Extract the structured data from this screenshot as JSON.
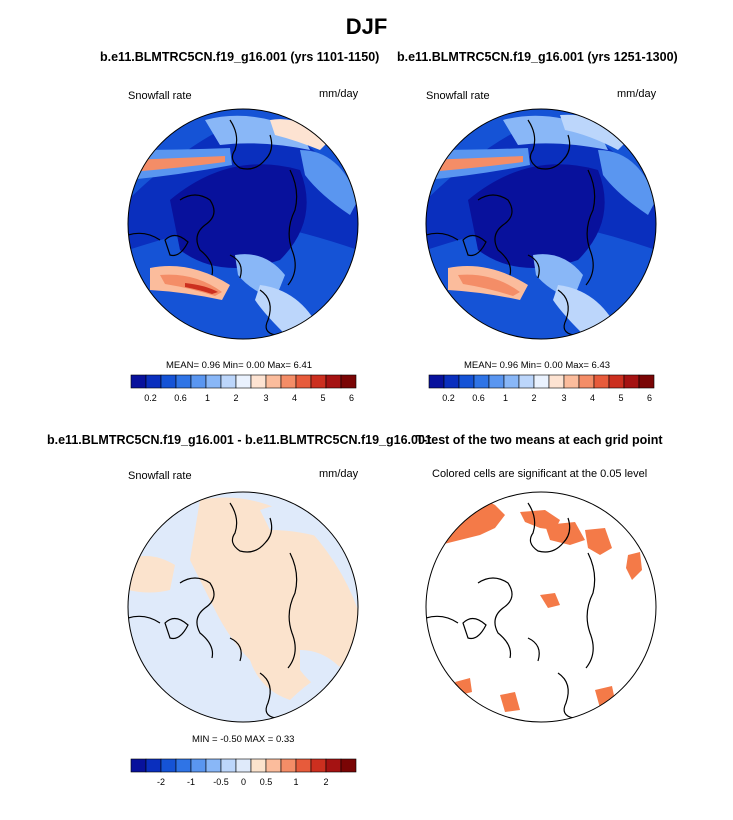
{
  "figure": {
    "title": "DJF",
    "top_left_title": "b.e11.BLMTRC5CN.f19_g16.001 (yrs 1101-1150)",
    "top_right_title": "b.e11.BLMTRC5CN.f19_g16.001 (yrs 1251-1300)",
    "bottom_left_title": "b.e11.BLMTRC5CN.f19_g16.001 - b.e11.BLMTRC5CN.f19_g16.001",
    "bottom_right_title": "T-test of the two means at each grid point"
  },
  "panels": {
    "p1": {
      "left_label": "Snowfall rate",
      "right_label": "mm/day",
      "stats": "MEAN=   0.96  Min=    0.00  Max=    6.41"
    },
    "p2": {
      "left_label": "Snowfall rate",
      "right_label": "mm/day",
      "stats": "MEAN=   0.96  Min=    0.00  Max=    6.43"
    },
    "p3": {
      "left_label": "Snowfall rate",
      "right_label": "mm/day",
      "stats": "MIN =  -0.50 MAX =   0.33"
    },
    "p4": {
      "left_label": "Colored cells are significant at the 0.05 level"
    }
  },
  "colors": {
    "abs_scale": [
      "#08119c",
      "#0a2fbe",
      "#1553d6",
      "#2f74e6",
      "#5a96f0",
      "#89b7f7",
      "#bcd6fb",
      "#eaf2fe",
      "#fde3d2",
      "#fbbc9c",
      "#f48d67",
      "#e75b3b",
      "#cc2f1f",
      "#a51212",
      "#7a0505"
    ],
    "diff_scale": [
      "#08119c",
      "#0a2fbe",
      "#1553d6",
      "#2f74e6",
      "#5a96f0",
      "#89b7f7",
      "#bcd6fb",
      "#dfeafa",
      "#fbe3cd",
      "#fbbc9c",
      "#f48d67",
      "#e75b3b",
      "#cc2f1f",
      "#a51212",
      "#7a0505"
    ],
    "significant": "#f47a48"
  },
  "colorbars": {
    "abs_labels": [
      "0.2",
      "0.6",
      "1",
      "2",
      "3",
      "4",
      "5",
      "6"
    ],
    "diff_labels": [
      "-2",
      "-1",
      "-0.5",
      "0",
      "0.5",
      "1",
      "2"
    ]
  },
  "chart_data": [
    {
      "type": "heatmap",
      "title": "b.e11.BLMTRC5CN.f19_g16.001 (yrs 1101-1150)",
      "variable": "Snowfall rate",
      "units": "mm/day",
      "projection": "polar stereographic (north pole)",
      "mean": 0.96,
      "min": 0.0,
      "max": 6.41,
      "contour_levels": [
        0.1,
        0.2,
        0.4,
        0.6,
        0.8,
        1,
        1.5,
        2,
        2.5,
        3,
        3.5,
        4,
        4.5,
        5,
        5.5,
        6
      ]
    },
    {
      "type": "heatmap",
      "title": "b.e11.BLMTRC5CN.f19_g16.001 (yrs 1251-1300)",
      "variable": "Snowfall rate",
      "units": "mm/day",
      "projection": "polar stereographic (north pole)",
      "mean": 0.96,
      "min": 0.0,
      "max": 6.43,
      "contour_levels": [
        0.1,
        0.2,
        0.4,
        0.6,
        0.8,
        1,
        1.5,
        2,
        2.5,
        3,
        3.5,
        4,
        4.5,
        5,
        5.5,
        6
      ]
    },
    {
      "type": "heatmap",
      "title": "b.e11.BLMTRC5CN.f19_g16.001 - b.e11.BLMTRC5CN.f19_g16.001",
      "variable": "Snowfall rate",
      "units": "mm/day",
      "min": -0.5,
      "max": 0.33
    },
    {
      "type": "heatmap",
      "title": "T-test of the two means at each grid point",
      "significance_level": 0.05
    }
  ]
}
